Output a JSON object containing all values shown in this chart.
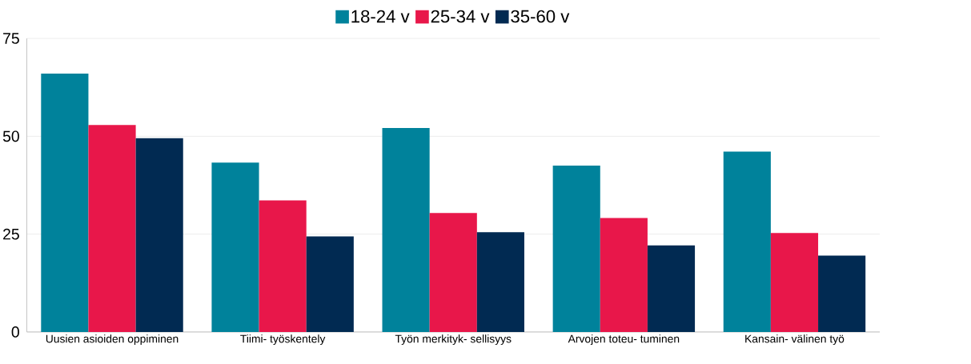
{
  "chart_data": {
    "type": "bar",
    "categories": [
      "Uusien asioiden oppiminen",
      "Tiimi- työskentely",
      "Työn merkityk- sellisyys",
      "Arvojen toteu- tuminen",
      "Kansain- välinen työ"
    ],
    "series": [
      {
        "name": "18-24 v",
        "color": "#00829b",
        "values": [
          66,
          43.3,
          52.1,
          42.5,
          46.1
        ]
      },
      {
        "name": "25-34 v",
        "color": "#e8174a",
        "values": [
          52.9,
          33.6,
          30.4,
          29.1,
          25.3
        ]
      },
      {
        "name": "35-60 v",
        "color": "#012a52",
        "values": [
          49.5,
          24.4,
          25.5,
          22.1,
          19.5
        ]
      }
    ],
    "ylim": [
      0,
      75
    ],
    "yticks": [
      0,
      25,
      50,
      75
    ],
    "grid": "y",
    "legend": "top"
  }
}
